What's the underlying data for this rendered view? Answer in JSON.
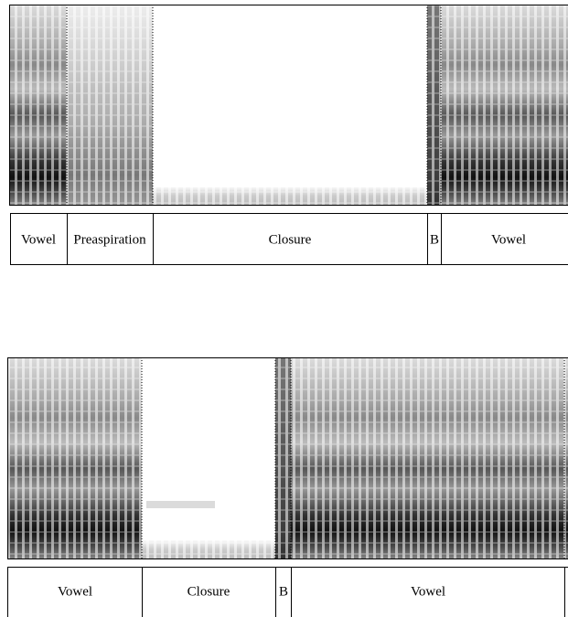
{
  "panels": [
    {
      "segments": [
        "Vowel",
        "Preaspiration",
        "Closure",
        "B",
        "Vowel"
      ]
    },
    {
      "segments": [
        "Vowel",
        "Closure",
        "B",
        "Vowel"
      ]
    }
  ]
}
